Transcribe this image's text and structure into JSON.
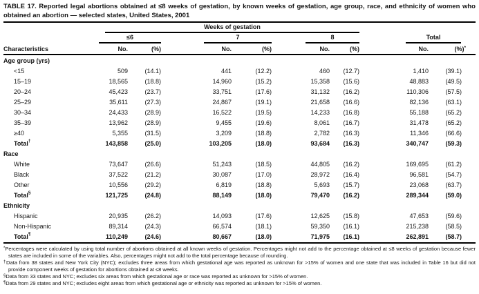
{
  "title": "TABLE 17. Reported legal abortions obtained at ≤8 weeks of gestation, by known weeks of gestation, age group, race, and ethnicity of women who obtained an abortion — selected states, United States, 2001",
  "table": {
    "spanner": "Weeks of gestation",
    "characteristics_label": "Characteristics",
    "col_groups": [
      {
        "label": "≤6",
        "sub": [
          "No.",
          "(%)"
        ]
      },
      {
        "label": "7",
        "sub": [
          "No.",
          "(%)"
        ]
      },
      {
        "label": "8",
        "sub": [
          "No.",
          "(%)"
        ]
      },
      {
        "label": "Total",
        "sub": [
          "No.",
          "(%)"
        ],
        "marker": "*"
      }
    ],
    "sections": [
      {
        "heading": "Age group (yrs)",
        "rows": [
          {
            "label": "<15",
            "bold": false,
            "cells": [
              "509",
              "(14.1)",
              "441",
              "(12.2)",
              "460",
              "(12.7)",
              "1,410",
              "(39.1)"
            ]
          },
          {
            "label": "15–19",
            "bold": false,
            "cells": [
              "18,565",
              "(18.8)",
              "14,960",
              "(15.2)",
              "15,358",
              "(15.6)",
              "48,883",
              "(49.5)"
            ]
          },
          {
            "label": "20–24",
            "bold": false,
            "cells": [
              "45,423",
              "(23.7)",
              "33,751",
              "(17.6)",
              "31,132",
              "(16.2)",
              "110,306",
              "(57.5)"
            ]
          },
          {
            "label": "25–29",
            "bold": false,
            "cells": [
              "35,611",
              "(27.3)",
              "24,867",
              "(19.1)",
              "21,658",
              "(16.6)",
              "82,136",
              "(63.1)"
            ]
          },
          {
            "label": "30–34",
            "bold": false,
            "cells": [
              "24,433",
              "(28.9)",
              "16,522",
              "(19.5)",
              "14,233",
              "(16.8)",
              "55,188",
              "(65.2)"
            ]
          },
          {
            "label": "35–39",
            "bold": false,
            "cells": [
              "13,962",
              "(28.9)",
              "9,455",
              "(19.6)",
              "8,061",
              "(16.7)",
              "31,478",
              "(65.2)"
            ]
          },
          {
            "label": "≥40",
            "bold": false,
            "cells": [
              "5,355",
              "(31.5)",
              "3,209",
              "(18.8)",
              "2,782",
              "(16.3)",
              "11,346",
              "(66.6)"
            ]
          },
          {
            "label": "Total",
            "marker": "†",
            "bold": true,
            "cells": [
              "143,858",
              "(25.0)",
              "103,205",
              "(18.0)",
              "93,684",
              "(16.3)",
              "340,747",
              "(59.3)"
            ]
          }
        ]
      },
      {
        "heading": "Race",
        "rows": [
          {
            "label": "White",
            "bold": false,
            "cells": [
              "73,647",
              "(26.6)",
              "51,243",
              "(18.5)",
              "44,805",
              "(16.2)",
              "169,695",
              "(61.2)"
            ]
          },
          {
            "label": "Black",
            "bold": false,
            "cells": [
              "37,522",
              "(21.2)",
              "30,087",
              "(17.0)",
              "28,972",
              "(16.4)",
              "96,581",
              "(54.7)"
            ]
          },
          {
            "label": "Other",
            "bold": false,
            "cells": [
              "10,556",
              "(29.2)",
              "6,819",
              "(18.8)",
              "5,693",
              "(15.7)",
              "23,068",
              "(63.7)"
            ]
          },
          {
            "label": "Total",
            "marker": "§",
            "bold": true,
            "cells": [
              "121,725",
              "(24.8)",
              "88,149",
              "(18.0)",
              "79,470",
              "(16.2)",
              "289,344",
              "(59.0)"
            ]
          }
        ]
      },
      {
        "heading": "Ethnicity",
        "rows": [
          {
            "label": "Hispanic",
            "bold": false,
            "cells": [
              "20,935",
              "(26.2)",
              "14,093",
              "(17.6)",
              "12,625",
              "(15.8)",
              "47,653",
              "(59.6)"
            ]
          },
          {
            "label": "Non-Hispanic",
            "bold": false,
            "cells": [
              "89,314",
              "(24.3)",
              "66,574",
              "(18.1)",
              "59,350",
              "(16.1)",
              "215,238",
              "(58.5)"
            ]
          },
          {
            "label": "Total",
            "marker": "¶",
            "bold": true,
            "cells": [
              "110,249",
              "(24.6)",
              "80,667",
              "(18.0)",
              "71,975",
              "(16.1)",
              "262,891",
              "(58.7)"
            ]
          }
        ]
      }
    ]
  },
  "footnotes": [
    {
      "marker": "*",
      "text": "Percentages were calculated by using total number of abortions obtained at all known weeks of gestation. Percentages might not add to the percentage obtained at ≤8 weeks of gestation because fewer states are included in some of the variables. Also, percentages might not add to the total percentage because of rounding."
    },
    {
      "marker": "†",
      "text": "Data from 38 states and New York City (NYC); excludes three areas from which gestational age was reported as unknown for >15% of women and one state that was included in Table 16 but did not provide component weeks of gestation for abortions obtained at ≤8 weeks."
    },
    {
      "marker": "§",
      "text": "Data from 33 states and NYC; excludes six areas from which gestational age or race was reported as unknown for >15% of women."
    },
    {
      "marker": "¶",
      "text": "Data from 29 states and NYC; excludes eight areas from which gestational age or ethnicity was reported as unknown for >15% of women."
    }
  ]
}
